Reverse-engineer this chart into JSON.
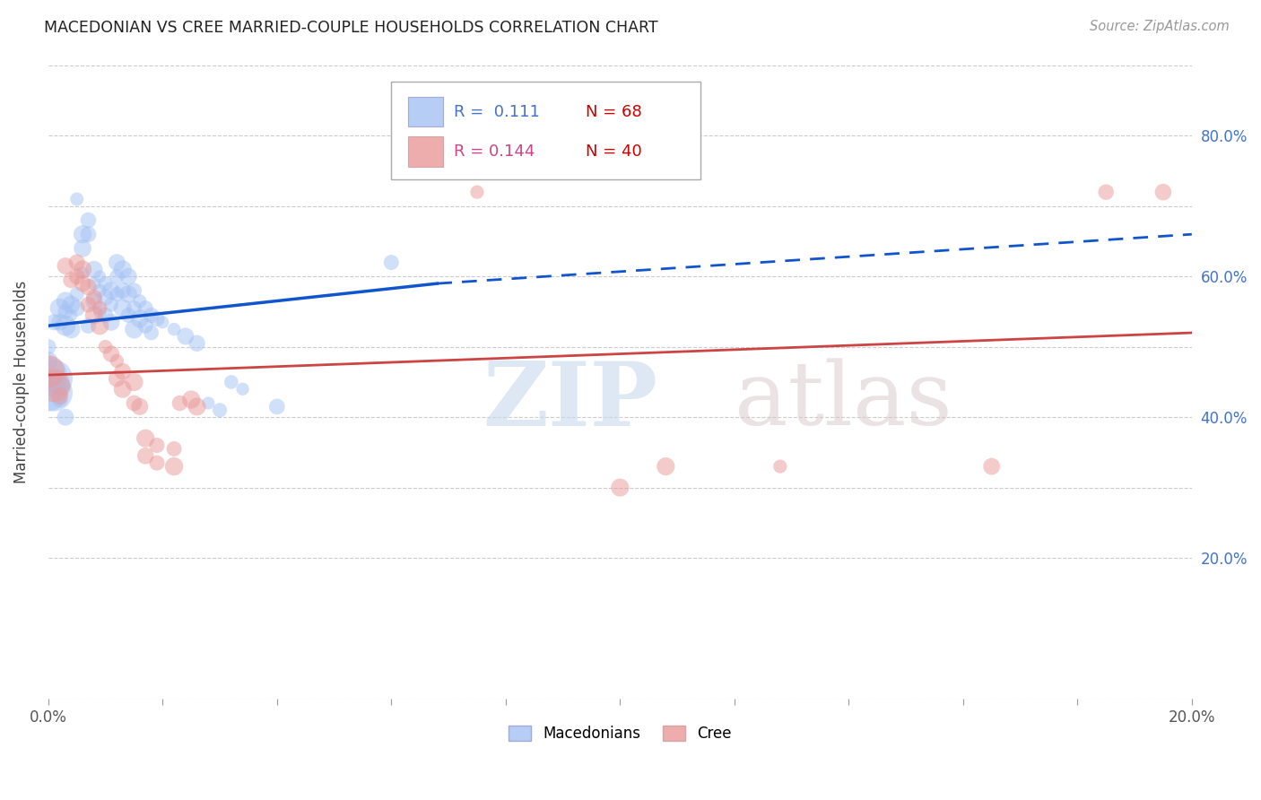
{
  "title": "MACEDONIAN VS CREE MARRIED-COUPLE HOUSEHOLDS CORRELATION CHART",
  "source": "Source: ZipAtlas.com",
  "ylabel": "Married-couple Households",
  "xlim": [
    0.0,
    0.2
  ],
  "ylim": [
    0.0,
    0.9
  ],
  "ytick_values": [
    0.0,
    0.2,
    0.3,
    0.4,
    0.5,
    0.6,
    0.7,
    0.8,
    0.9
  ],
  "ytick_labels": [
    "",
    "20.0%",
    "",
    "40.0%",
    "",
    "60.0%",
    "",
    "80.0%",
    ""
  ],
  "xtick_values": [
    0.0,
    0.02,
    0.04,
    0.06,
    0.08,
    0.1,
    0.12,
    0.14,
    0.16,
    0.18,
    0.2
  ],
  "xtick_labels": [
    "0.0%",
    "",
    "",
    "",
    "",
    "",
    "",
    "",
    "",
    "",
    "20.0%"
  ],
  "blue_color": "#a4c2f4",
  "pink_color": "#ea9999",
  "blue_line_color": "#1155cc",
  "pink_line_color": "#cc4444",
  "watermark_zip": "ZIP",
  "watermark_atlas": "atlas",
  "blue_scatter": [
    [
      0.001,
      0.535
    ],
    [
      0.002,
      0.555
    ],
    [
      0.002,
      0.535
    ],
    [
      0.003,
      0.565
    ],
    [
      0.003,
      0.55
    ],
    [
      0.003,
      0.53
    ],
    [
      0.004,
      0.56
    ],
    [
      0.004,
      0.545
    ],
    [
      0.004,
      0.525
    ],
    [
      0.005,
      0.71
    ],
    [
      0.005,
      0.575
    ],
    [
      0.005,
      0.555
    ],
    [
      0.006,
      0.66
    ],
    [
      0.006,
      0.64
    ],
    [
      0.006,
      0.605
    ],
    [
      0.007,
      0.68
    ],
    [
      0.007,
      0.66
    ],
    [
      0.007,
      0.53
    ],
    [
      0.008,
      0.61
    ],
    [
      0.008,
      0.59
    ],
    [
      0.008,
      0.565
    ],
    [
      0.009,
      0.6
    ],
    [
      0.009,
      0.58
    ],
    [
      0.009,
      0.55
    ],
    [
      0.01,
      0.59
    ],
    [
      0.01,
      0.57
    ],
    [
      0.01,
      0.545
    ],
    [
      0.011,
      0.58
    ],
    [
      0.011,
      0.56
    ],
    [
      0.011,
      0.535
    ],
    [
      0.012,
      0.62
    ],
    [
      0.012,
      0.6
    ],
    [
      0.012,
      0.575
    ],
    [
      0.013,
      0.61
    ],
    [
      0.013,
      0.58
    ],
    [
      0.013,
      0.555
    ],
    [
      0.014,
      0.6
    ],
    [
      0.014,
      0.575
    ],
    [
      0.014,
      0.545
    ],
    [
      0.015,
      0.58
    ],
    [
      0.015,
      0.555
    ],
    [
      0.015,
      0.525
    ],
    [
      0.016,
      0.565
    ],
    [
      0.016,
      0.54
    ],
    [
      0.017,
      0.555
    ],
    [
      0.017,
      0.53
    ],
    [
      0.018,
      0.545
    ],
    [
      0.018,
      0.52
    ],
    [
      0.019,
      0.54
    ],
    [
      0.02,
      0.535
    ],
    [
      0.022,
      0.525
    ],
    [
      0.024,
      0.515
    ],
    [
      0.026,
      0.505
    ],
    [
      0.028,
      0.42
    ],
    [
      0.03,
      0.41
    ],
    [
      0.032,
      0.45
    ],
    [
      0.034,
      0.44
    ],
    [
      0.04,
      0.415
    ],
    [
      0.06,
      0.62
    ],
    [
      0.0,
      0.5
    ],
    [
      0.0,
      0.48
    ],
    [
      0.0,
      0.46
    ],
    [
      0.0,
      0.435
    ],
    [
      0.001,
      0.455
    ],
    [
      0.001,
      0.435
    ],
    [
      0.002,
      0.445
    ],
    [
      0.002,
      0.425
    ],
    [
      0.003,
      0.4
    ]
  ],
  "pink_scatter": [
    [
      0.003,
      0.615
    ],
    [
      0.004,
      0.595
    ],
    [
      0.005,
      0.62
    ],
    [
      0.005,
      0.6
    ],
    [
      0.006,
      0.61
    ],
    [
      0.006,
      0.59
    ],
    [
      0.007,
      0.585
    ],
    [
      0.007,
      0.56
    ],
    [
      0.008,
      0.57
    ],
    [
      0.008,
      0.545
    ],
    [
      0.009,
      0.555
    ],
    [
      0.009,
      0.53
    ],
    [
      0.01,
      0.5
    ],
    [
      0.011,
      0.49
    ],
    [
      0.012,
      0.48
    ],
    [
      0.012,
      0.455
    ],
    [
      0.013,
      0.465
    ],
    [
      0.013,
      0.44
    ],
    [
      0.015,
      0.45
    ],
    [
      0.015,
      0.42
    ],
    [
      0.016,
      0.415
    ],
    [
      0.017,
      0.37
    ],
    [
      0.017,
      0.345
    ],
    [
      0.019,
      0.36
    ],
    [
      0.019,
      0.335
    ],
    [
      0.022,
      0.355
    ],
    [
      0.022,
      0.33
    ],
    [
      0.023,
      0.42
    ],
    [
      0.025,
      0.425
    ],
    [
      0.026,
      0.415
    ],
    [
      0.0,
      0.465
    ],
    [
      0.001,
      0.445
    ],
    [
      0.002,
      0.43
    ],
    [
      0.075,
      0.72
    ],
    [
      0.1,
      0.3
    ],
    [
      0.108,
      0.33
    ],
    [
      0.128,
      0.33
    ],
    [
      0.165,
      0.33
    ],
    [
      0.185,
      0.72
    ],
    [
      0.195,
      0.72
    ]
  ],
  "blue_line_solid": [
    [
      0.0,
      0.53
    ],
    [
      0.068,
      0.59
    ]
  ],
  "blue_line_dashed": [
    [
      0.068,
      0.59
    ],
    [
      0.2,
      0.66
    ]
  ],
  "pink_line": [
    [
      0.0,
      0.46
    ],
    [
      0.2,
      0.52
    ]
  ]
}
